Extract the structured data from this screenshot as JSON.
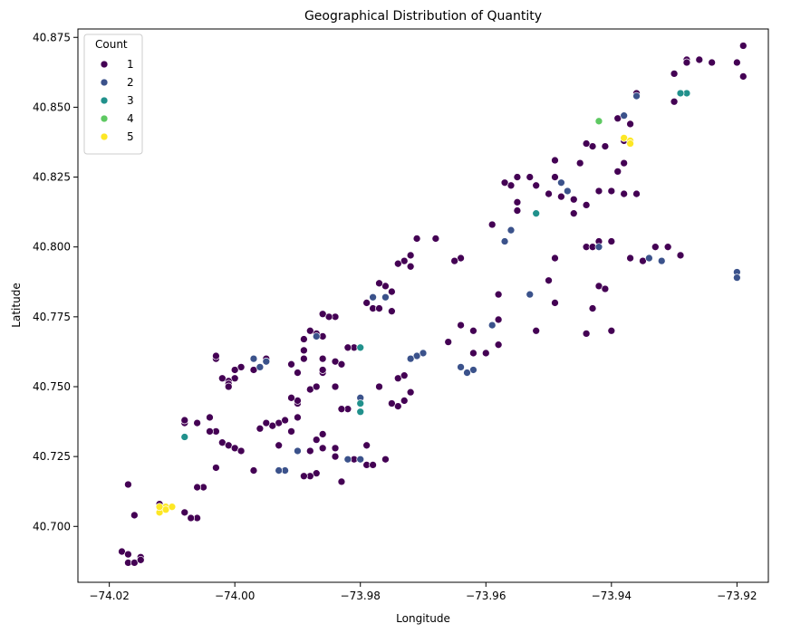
{
  "chart_data": {
    "type": "scatter",
    "title": "Geographical Distribution of Quantity",
    "xlabel": "Longitude",
    "ylabel": "Latitude",
    "xlim": [
      -74.025,
      -73.915
    ],
    "ylim": [
      40.68,
      40.878
    ],
    "xticks": [
      -74.02,
      -74.0,
      -73.98,
      -73.96,
      -73.94,
      -73.92
    ],
    "xtick_labels": [
      "−74.02",
      "−74.00",
      "−73.98",
      "−73.96",
      "−73.94",
      "−73.92"
    ],
    "yticks": [
      40.7,
      40.725,
      40.75,
      40.775,
      40.8,
      40.825,
      40.85,
      40.875
    ],
    "ytick_labels": [
      "40.700",
      "40.725",
      "40.750",
      "40.775",
      "40.800",
      "40.825",
      "40.850",
      "40.875"
    ],
    "grid": false,
    "legend": {
      "title": "Count",
      "placement": "top-left",
      "entries": [
        {
          "label": "1",
          "color": "#440154"
        },
        {
          "label": "2",
          "color": "#3b528b"
        },
        {
          "label": "3",
          "color": "#21918c"
        },
        {
          "label": "4",
          "color": "#5ec962"
        },
        {
          "label": "5",
          "color": "#fde725"
        }
      ]
    },
    "series": [
      {
        "name": "1",
        "color": "#440154",
        "points": [
          [
            -73.919,
            40.872
          ],
          [
            -73.92,
            40.866
          ],
          [
            -73.919,
            40.861
          ],
          [
            -73.924,
            40.866
          ],
          [
            -73.926,
            40.867
          ],
          [
            -73.928,
            40.867
          ],
          [
            -73.93,
            40.862
          ],
          [
            -73.936,
            40.855
          ],
          [
            -73.937,
            40.844
          ],
          [
            -73.941,
            40.836
          ],
          [
            -73.943,
            40.836
          ],
          [
            -73.944,
            40.837
          ],
          [
            -73.939,
            40.846
          ],
          [
            -73.938,
            40.838
          ],
          [
            -73.939,
            40.827
          ],
          [
            -73.938,
            40.83
          ],
          [
            -73.94,
            40.82
          ],
          [
            -73.942,
            40.82
          ],
          [
            -73.938,
            40.819
          ],
          [
            -73.936,
            40.819
          ],
          [
            -73.944,
            40.815
          ],
          [
            -73.946,
            40.812
          ],
          [
            -73.948,
            40.818
          ],
          [
            -73.949,
            40.831
          ],
          [
            -73.949,
            40.825
          ],
          [
            -73.95,
            40.819
          ],
          [
            -73.952,
            40.822
          ],
          [
            -73.953,
            40.825
          ],
          [
            -73.955,
            40.825
          ],
          [
            -73.956,
            40.822
          ],
          [
            -73.957,
            40.823
          ],
          [
            -73.955,
            40.816
          ],
          [
            -73.955,
            40.813
          ],
          [
            -73.959,
            40.808
          ],
          [
            -73.946,
            40.817
          ],
          [
            -73.944,
            40.8
          ],
          [
            -73.943,
            40.8
          ],
          [
            -73.942,
            40.802
          ],
          [
            -73.94,
            40.802
          ],
          [
            -73.937,
            40.796
          ],
          [
            -73.933,
            40.8
          ],
          [
            -73.931,
            40.8
          ],
          [
            -73.929,
            40.797
          ],
          [
            -73.942,
            40.786
          ],
          [
            -73.941,
            40.785
          ],
          [
            -73.943,
            40.778
          ],
          [
            -73.944,
            40.769
          ],
          [
            -73.94,
            40.77
          ],
          [
            -73.949,
            40.796
          ],
          [
            -73.95,
            40.788
          ],
          [
            -73.949,
            40.78
          ],
          [
            -73.952,
            40.77
          ],
          [
            -73.958,
            40.783
          ],
          [
            -73.958,
            40.774
          ],
          [
            -73.958,
            40.765
          ],
          [
            -73.96,
            40.762
          ],
          [
            -73.962,
            40.762
          ],
          [
            -73.964,
            40.772
          ],
          [
            -73.966,
            40.766
          ],
          [
            -73.962,
            40.77
          ],
          [
            -73.964,
            40.796
          ],
          [
            -73.965,
            40.795
          ],
          [
            -73.968,
            40.803
          ],
          [
            -73.971,
            40.803
          ],
          [
            -73.972,
            40.797
          ],
          [
            -73.973,
            40.795
          ],
          [
            -73.972,
            40.793
          ],
          [
            -73.974,
            40.794
          ],
          [
            -73.975,
            40.784
          ],
          [
            -73.976,
            40.786
          ],
          [
            -73.977,
            40.787
          ],
          [
            -73.979,
            40.78
          ],
          [
            -73.978,
            40.778
          ],
          [
            -73.977,
            40.778
          ],
          [
            -73.975,
            40.777
          ],
          [
            -73.974,
            40.753
          ],
          [
            -73.973,
            40.754
          ],
          [
            -73.972,
            40.748
          ],
          [
            -73.973,
            40.745
          ],
          [
            -73.974,
            40.743
          ],
          [
            -73.975,
            40.744
          ],
          [
            -73.977,
            40.75
          ],
          [
            -73.976,
            40.724
          ],
          [
            -73.979,
            40.729
          ],
          [
            -73.979,
            40.722
          ],
          [
            -73.978,
            40.722
          ],
          [
            -73.981,
            40.724
          ],
          [
            -73.981,
            40.764
          ],
          [
            -73.982,
            40.764
          ],
          [
            -73.984,
            40.759
          ],
          [
            -73.983,
            40.758
          ],
          [
            -73.982,
            40.742
          ],
          [
            -73.983,
            40.742
          ],
          [
            -73.984,
            40.775
          ],
          [
            -73.985,
            40.775
          ],
          [
            -73.986,
            40.776
          ],
          [
            -73.986,
            40.768
          ],
          [
            -73.987,
            40.769
          ],
          [
            -73.988,
            40.77
          ],
          [
            -73.989,
            40.767
          ],
          [
            -73.989,
            40.763
          ],
          [
            -73.989,
            40.76
          ],
          [
            -73.986,
            40.76
          ],
          [
            -73.986,
            40.755
          ],
          [
            -73.988,
            40.749
          ],
          [
            -73.987,
            40.75
          ],
          [
            -73.986,
            40.756
          ],
          [
            -73.984,
            40.75
          ],
          [
            -73.99,
            40.744
          ],
          [
            -73.99,
            40.745
          ],
          [
            -73.991,
            40.746
          ],
          [
            -73.99,
            40.739
          ],
          [
            -73.991,
            40.734
          ],
          [
            -73.993,
            40.737
          ],
          [
            -73.992,
            40.738
          ],
          [
            -73.993,
            40.729
          ],
          [
            -73.988,
            40.727
          ],
          [
            -73.987,
            40.731
          ],
          [
            -73.986,
            40.733
          ],
          [
            -73.986,
            40.728
          ],
          [
            -73.984,
            40.728
          ],
          [
            -73.984,
            40.725
          ],
          [
            -73.983,
            40.716
          ],
          [
            -73.987,
            40.719
          ],
          [
            -73.988,
            40.718
          ],
          [
            -73.989,
            40.718
          ],
          [
            -73.994,
            40.736
          ],
          [
            -73.995,
            40.737
          ],
          [
            -73.996,
            40.735
          ],
          [
            -73.995,
            40.76
          ],
          [
            -73.996,
            40.757
          ],
          [
            -73.997,
            40.756
          ],
          [
            -73.999,
            40.757
          ],
          [
            -74.0,
            40.756
          ],
          [
            -74.0,
            40.753
          ],
          [
            -74.001,
            40.752
          ],
          [
            -74.001,
            40.751
          ],
          [
            -74.001,
            40.75
          ],
          [
            -74.002,
            40.753
          ],
          [
            -74.003,
            40.76
          ],
          [
            -74.003,
            40.761
          ],
          [
            -74.004,
            40.739
          ],
          [
            -74.003,
            40.734
          ],
          [
            -74.004,
            40.734
          ],
          [
            -74.002,
            40.73
          ],
          [
            -74.001,
            40.729
          ],
          [
            -74.0,
            40.728
          ],
          [
            -73.999,
            40.727
          ],
          [
            -73.99,
            40.755
          ],
          [
            -73.991,
            40.758
          ],
          [
            -73.997,
            40.72
          ],
          [
            -74.003,
            40.721
          ],
          [
            -74.005,
            40.714
          ],
          [
            -74.006,
            40.714
          ],
          [
            -74.006,
            40.737
          ],
          [
            -74.008,
            40.737
          ],
          [
            -74.008,
            40.738
          ],
          [
            -74.006,
            40.703
          ],
          [
            -74.007,
            40.703
          ],
          [
            -74.008,
            40.705
          ],
          [
            -74.012,
            40.708
          ],
          [
            -74.016,
            40.704
          ],
          [
            -74.016,
            40.704
          ],
          [
            -74.017,
            40.715
          ],
          [
            -74.018,
            40.691
          ],
          [
            -74.017,
            40.69
          ],
          [
            -74.017,
            40.687
          ],
          [
            -74.016,
            40.687
          ],
          [
            -74.015,
            40.689
          ],
          [
            -74.015,
            40.688
          ],
          [
            -73.928,
            40.866
          ],
          [
            -73.93,
            40.852
          ],
          [
            -73.945,
            40.83
          ],
          [
            -73.935,
            40.795
          ]
        ]
      },
      {
        "name": "2",
        "color": "#3b528b",
        "points": [
          [
            -73.92,
            40.791
          ],
          [
            -73.92,
            40.789
          ],
          [
            -73.932,
            40.795
          ],
          [
            -73.934,
            40.796
          ],
          [
            -73.936,
            40.854
          ],
          [
            -73.938,
            40.847
          ],
          [
            -73.942,
            40.8
          ],
          [
            -73.947,
            40.82
          ],
          [
            -73.948,
            40.823
          ],
          [
            -73.953,
            40.783
          ],
          [
            -73.956,
            40.806
          ],
          [
            -73.957,
            40.802
          ],
          [
            -73.959,
            40.772
          ],
          [
            -73.962,
            40.756
          ],
          [
            -73.963,
            40.755
          ],
          [
            -73.964,
            40.757
          ],
          [
            -73.97,
            40.762
          ],
          [
            -73.971,
            40.761
          ],
          [
            -73.972,
            40.76
          ],
          [
            -73.976,
            40.782
          ],
          [
            -73.978,
            40.782
          ],
          [
            -73.98,
            40.746
          ],
          [
            -73.98,
            40.724
          ],
          [
            -73.982,
            40.724
          ],
          [
            -73.987,
            40.768
          ],
          [
            -73.99,
            40.727
          ],
          [
            -73.992,
            40.72
          ],
          [
            -73.993,
            40.72
          ],
          [
            -73.995,
            40.759
          ],
          [
            -73.996,
            40.757
          ],
          [
            -73.997,
            40.76
          ]
        ]
      },
      {
        "name": "3",
        "color": "#21918c",
        "points": [
          [
            -73.928,
            40.855
          ],
          [
            -73.929,
            40.855
          ],
          [
            -73.952,
            40.812
          ],
          [
            -73.98,
            40.764
          ],
          [
            -73.98,
            40.744
          ],
          [
            -73.98,
            40.741
          ],
          [
            -74.008,
            40.732
          ]
        ]
      },
      {
        "name": "4",
        "color": "#5ec962",
        "points": [
          [
            -73.942,
            40.845
          ]
        ]
      },
      {
        "name": "5",
        "color": "#fde725",
        "points": [
          [
            -73.938,
            40.839
          ],
          [
            -73.937,
            40.838
          ],
          [
            -73.937,
            40.837
          ],
          [
            -74.011,
            40.707
          ],
          [
            -74.011,
            40.706
          ],
          [
            -74.012,
            40.705
          ],
          [
            -74.012,
            40.707
          ],
          [
            -74.01,
            40.707
          ]
        ]
      }
    ]
  }
}
